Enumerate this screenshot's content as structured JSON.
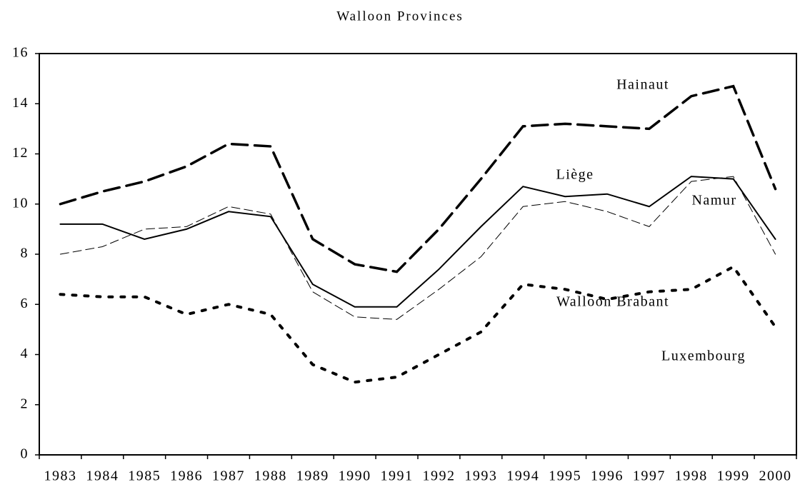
{
  "chart_data": {
    "type": "line",
    "title": "Walloon Provinces",
    "categories": [
      "1983",
      "1984",
      "1985",
      "1986",
      "1987",
      "1988",
      "1989",
      "1990",
      "1991",
      "1992",
      "1993",
      "1994",
      "1995",
      "1996",
      "1997",
      "1998",
      "1999",
      "2000"
    ],
    "series": [
      {
        "name": "Hainaut",
        "color": "#000000",
        "values": [
          10.0,
          10.5,
          10.9,
          11.5,
          12.4,
          12.3,
          8.6,
          7.6,
          7.3,
          9.0,
          11.0,
          13.1,
          13.2,
          13.1,
          13.0,
          14.3,
          14.7,
          10.6
        ]
      },
      {
        "name": "Liège",
        "color": "#000000",
        "values": [
          9.2,
          9.2,
          8.6,
          9.0,
          9.7,
          9.5,
          6.8,
          5.9,
          5.9,
          7.4,
          9.1,
          10.7,
          10.3,
          10.4,
          9.9,
          11.1,
          11.0,
          8.6
        ]
      },
      {
        "name": "Namur",
        "color": "#000000",
        "values": [
          8.0,
          8.3,
          9.0,
          9.1,
          9.9,
          9.6,
          6.5,
          5.5,
          5.4,
          6.6,
          7.9,
          9.9,
          10.1,
          9.7,
          9.1,
          10.9,
          11.1,
          8.0
        ]
      },
      {
        "name": "Walloon Brabant",
        "color": "#000000",
        "values": [
          6.4,
          6.3,
          6.3,
          5.6,
          6.0,
          5.6,
          3.6,
          2.9,
          3.1,
          4.0,
          4.9,
          6.8,
          6.6,
          6.2,
          6.5,
          6.6,
          7.5,
          5.1
        ]
      }
    ],
    "annotations": [
      "Luxembourg"
    ],
    "ylim": [
      0,
      16
    ],
    "yticks": [
      0,
      2,
      4,
      6,
      8,
      10,
      12,
      14,
      16
    ],
    "grid": false
  }
}
